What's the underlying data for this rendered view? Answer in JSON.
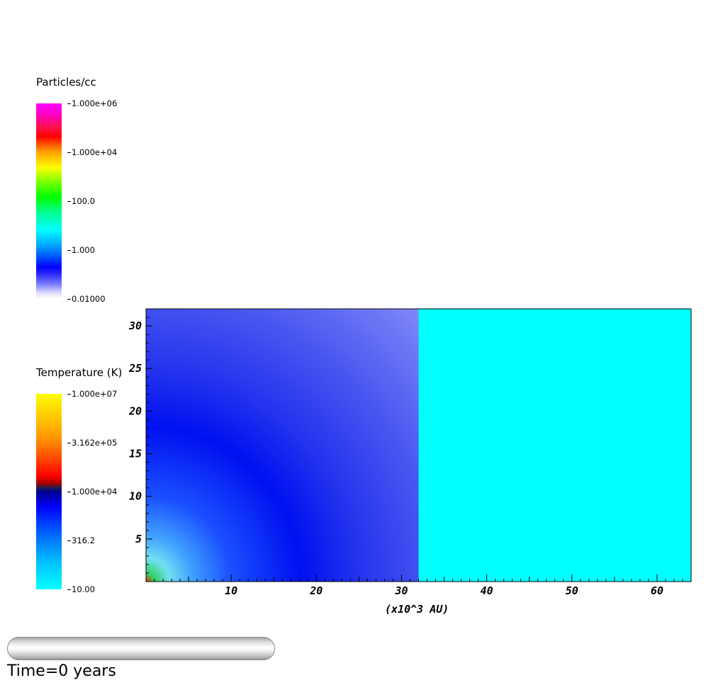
{
  "density_legend": {
    "title": "Particles/cc",
    "ticks": [
      "1.000e+06",
      "1.000e+04",
      "100.0",
      "1.000",
      "0.01000"
    ]
  },
  "temperature_legend": {
    "title": "Temperature (K)",
    "ticks": [
      "1.000e+07",
      "3.162e+05",
      "1.000e+04",
      "316.2",
      "10.00"
    ]
  },
  "time_label": "Time=0 years",
  "progress": {
    "fraction": 0
  },
  "colors": {
    "background": "#ffffff",
    "outer_region": "#00ffff",
    "inner_region_base": "#2a2ff0"
  },
  "chart_data": {
    "type": "heatmap",
    "title": "",
    "xlabel": "(x10^3 AU)",
    "ylabel": "",
    "xlim": [
      0,
      64
    ],
    "ylim": [
      0,
      32
    ],
    "x_ticks": [
      10,
      20,
      30,
      40,
      50,
      60
    ],
    "y_ticks": [
      5,
      10,
      15,
      20,
      25,
      30
    ],
    "regions": [
      {
        "name": "cloud",
        "x_range": [
          0,
          32
        ],
        "y_range": [
          0,
          32
        ],
        "pattern": "radial gradient from origin: hot core (red/green/cyan) at origin, blue shell peaking near r=20, lighter violet-blue beyond"
      },
      {
        "name": "ambient",
        "x_range": [
          32,
          64
        ],
        "y_range": [
          0,
          32
        ],
        "color": "#00ffff"
      }
    ]
  }
}
